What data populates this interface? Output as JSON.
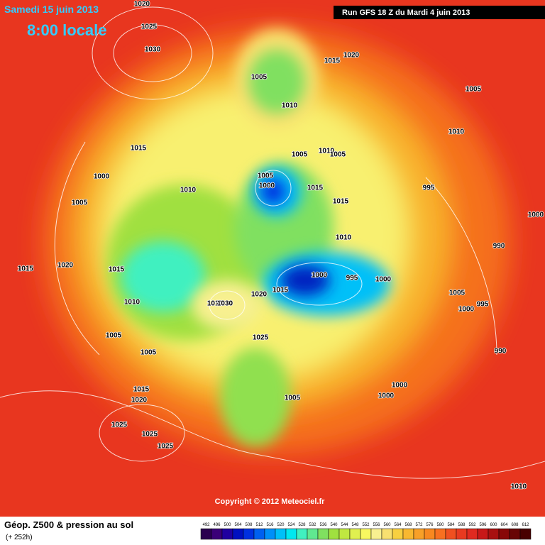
{
  "header": {
    "date": "Samedi 15 juin 2013",
    "time": "8:00 locale",
    "run": "Run GFS 18 Z du Mardi 4 juin 2013"
  },
  "copyright": "Copyright © 2012 Meteociel.fr",
  "footer": {
    "title": "Géop. Z500 & pression au sol",
    "lead": "(+ 252h)"
  },
  "legend": {
    "scale": [
      492,
      496,
      500,
      504,
      508,
      512,
      516,
      520,
      524,
      528,
      532,
      536,
      540,
      544,
      548,
      552,
      556,
      560,
      564,
      568,
      572,
      576,
      580,
      584,
      588,
      592,
      596,
      600,
      604,
      608,
      612
    ],
    "colors": [
      "#2a0050",
      "#3a0078",
      "#2000a0",
      "#0010c0",
      "#0030e0",
      "#0060f0",
      "#0090f8",
      "#00c0f8",
      "#00e8f0",
      "#40f0c0",
      "#60e890",
      "#80e060",
      "#a0e040",
      "#c0e840",
      "#e0f050",
      "#f8f860",
      "#f8f090",
      "#f8e070",
      "#f8d040",
      "#f8b830",
      "#f8a028",
      "#f88820",
      "#f87020",
      "#f05020",
      "#e83a20",
      "#e02a20",
      "#c81818",
      "#a81010",
      "#880808",
      "#680404",
      "#480000"
    ]
  },
  "isobars": [
    1020,
    1025,
    1030,
    1005,
    1010,
    1020,
    1015,
    1005,
    1010,
    1015,
    1005,
    1010,
    1005,
    1000,
    1005,
    1000,
    1010,
    1015,
    995,
    1015,
    1005,
    1000,
    1010,
    990,
    1015,
    1020,
    1015,
    1000,
    995,
    1000,
    1015,
    1020,
    1005,
    1010,
    1010,
    1030,
    995,
    1000,
    1025,
    1005,
    990,
    1005,
    1000,
    1015,
    1000,
    1020,
    1005,
    1025,
    1025,
    1025,
    1010
  ]
}
